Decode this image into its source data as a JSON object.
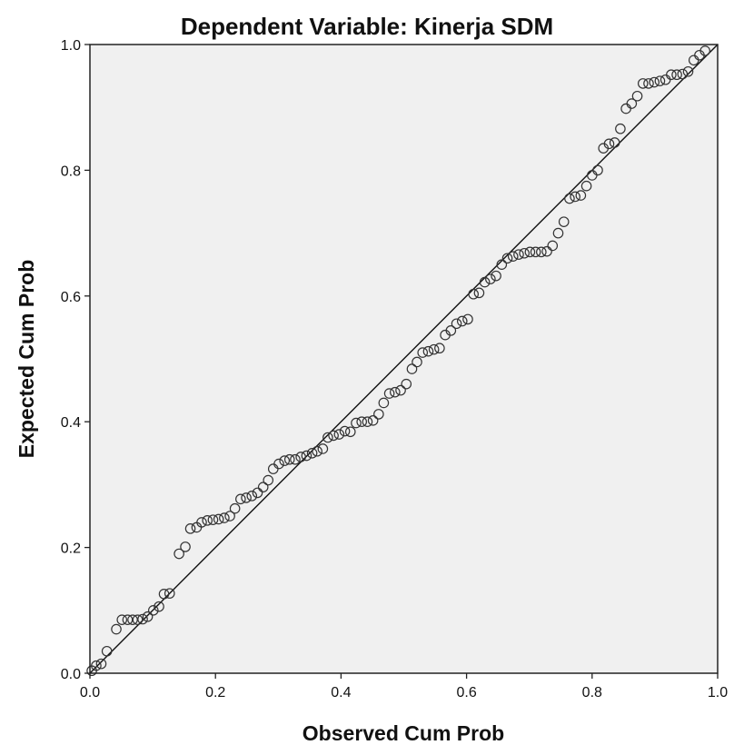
{
  "chart_data": {
    "type": "scatter",
    "title": "Dependent Variable: Kinerja SDM",
    "xlabel": "Observed Cum Prob",
    "ylabel": "Expected Cum Prob",
    "xlim": [
      0.0,
      1.0
    ],
    "ylim": [
      0.0,
      1.0
    ],
    "x_ticks": [
      "0.0",
      "0.2",
      "0.4",
      "0.6",
      "0.8",
      "1.0"
    ],
    "y_ticks": [
      "0.0",
      "0.2",
      "0.4",
      "0.6",
      "0.8",
      "1.0"
    ],
    "grid": false,
    "reference_line": [
      [
        0.0,
        0.0
      ],
      [
        1.0,
        1.0
      ]
    ],
    "colors": {
      "plot_background": "#f0f0f0",
      "marker": "#333333",
      "line": "#111111"
    },
    "series": [
      {
        "points": [
          [
            0.003,
            0.004
          ],
          [
            0.01,
            0.012
          ],
          [
            0.018,
            0.015
          ],
          [
            0.027,
            0.035
          ],
          [
            0.042,
            0.07
          ],
          [
            0.051,
            0.085
          ],
          [
            0.06,
            0.085
          ],
          [
            0.068,
            0.085
          ],
          [
            0.076,
            0.085
          ],
          [
            0.084,
            0.086
          ],
          [
            0.092,
            0.09
          ],
          [
            0.101,
            0.1
          ],
          [
            0.11,
            0.106
          ],
          [
            0.118,
            0.126
          ],
          [
            0.127,
            0.127
          ],
          [
            0.142,
            0.19
          ],
          [
            0.152,
            0.201
          ],
          [
            0.16,
            0.23
          ],
          [
            0.17,
            0.232
          ],
          [
            0.178,
            0.24
          ],
          [
            0.187,
            0.243
          ],
          [
            0.196,
            0.244
          ],
          [
            0.205,
            0.245
          ],
          [
            0.214,
            0.247
          ],
          [
            0.223,
            0.25
          ],
          [
            0.231,
            0.262
          ],
          [
            0.24,
            0.277
          ],
          [
            0.249,
            0.279
          ],
          [
            0.258,
            0.282
          ],
          [
            0.267,
            0.287
          ],
          [
            0.276,
            0.296
          ],
          [
            0.284,
            0.307
          ],
          [
            0.292,
            0.325
          ],
          [
            0.301,
            0.333
          ],
          [
            0.31,
            0.338
          ],
          [
            0.318,
            0.34
          ],
          [
            0.327,
            0.34
          ],
          [
            0.336,
            0.344
          ],
          [
            0.345,
            0.346
          ],
          [
            0.354,
            0.35
          ],
          [
            0.362,
            0.353
          ],
          [
            0.371,
            0.357
          ],
          [
            0.379,
            0.375
          ],
          [
            0.388,
            0.378
          ],
          [
            0.397,
            0.38
          ],
          [
            0.406,
            0.385
          ],
          [
            0.415,
            0.384
          ],
          [
            0.424,
            0.398
          ],
          [
            0.433,
            0.4
          ],
          [
            0.442,
            0.4
          ],
          [
            0.451,
            0.402
          ],
          [
            0.46,
            0.412
          ],
          [
            0.468,
            0.43
          ],
          [
            0.477,
            0.445
          ],
          [
            0.486,
            0.447
          ],
          [
            0.495,
            0.45
          ],
          [
            0.504,
            0.46
          ],
          [
            0.513,
            0.484
          ],
          [
            0.521,
            0.495
          ],
          [
            0.53,
            0.51
          ],
          [
            0.539,
            0.512
          ],
          [
            0.548,
            0.515
          ],
          [
            0.557,
            0.517
          ],
          [
            0.566,
            0.538
          ],
          [
            0.575,
            0.545
          ],
          [
            0.584,
            0.556
          ],
          [
            0.593,
            0.56
          ],
          [
            0.602,
            0.563
          ],
          [
            0.611,
            0.603
          ],
          [
            0.62,
            0.605
          ],
          [
            0.629,
            0.622
          ],
          [
            0.638,
            0.627
          ],
          [
            0.647,
            0.632
          ],
          [
            0.656,
            0.65
          ],
          [
            0.665,
            0.66
          ],
          [
            0.674,
            0.663
          ],
          [
            0.683,
            0.666
          ],
          [
            0.692,
            0.668
          ],
          [
            0.701,
            0.67
          ],
          [
            0.71,
            0.67
          ],
          [
            0.719,
            0.67
          ],
          [
            0.728,
            0.671
          ],
          [
            0.737,
            0.68
          ],
          [
            0.746,
            0.7
          ],
          [
            0.755,
            0.718
          ],
          [
            0.764,
            0.755
          ],
          [
            0.773,
            0.758
          ],
          [
            0.782,
            0.76
          ],
          [
            0.791,
            0.775
          ],
          [
            0.8,
            0.792
          ],
          [
            0.809,
            0.8
          ],
          [
            0.818,
            0.835
          ],
          [
            0.827,
            0.842
          ],
          [
            0.836,
            0.844
          ],
          [
            0.845,
            0.866
          ],
          [
            0.854,
            0.898
          ],
          [
            0.863,
            0.906
          ],
          [
            0.872,
            0.918
          ],
          [
            0.881,
            0.938
          ],
          [
            0.89,
            0.938
          ],
          [
            0.899,
            0.94
          ],
          [
            0.908,
            0.942
          ],
          [
            0.917,
            0.944
          ],
          [
            0.926,
            0.952
          ],
          [
            0.935,
            0.952
          ],
          [
            0.944,
            0.953
          ],
          [
            0.953,
            0.957
          ],
          [
            0.962,
            0.975
          ],
          [
            0.971,
            0.983
          ],
          [
            0.98,
            0.99
          ]
        ]
      }
    ]
  }
}
